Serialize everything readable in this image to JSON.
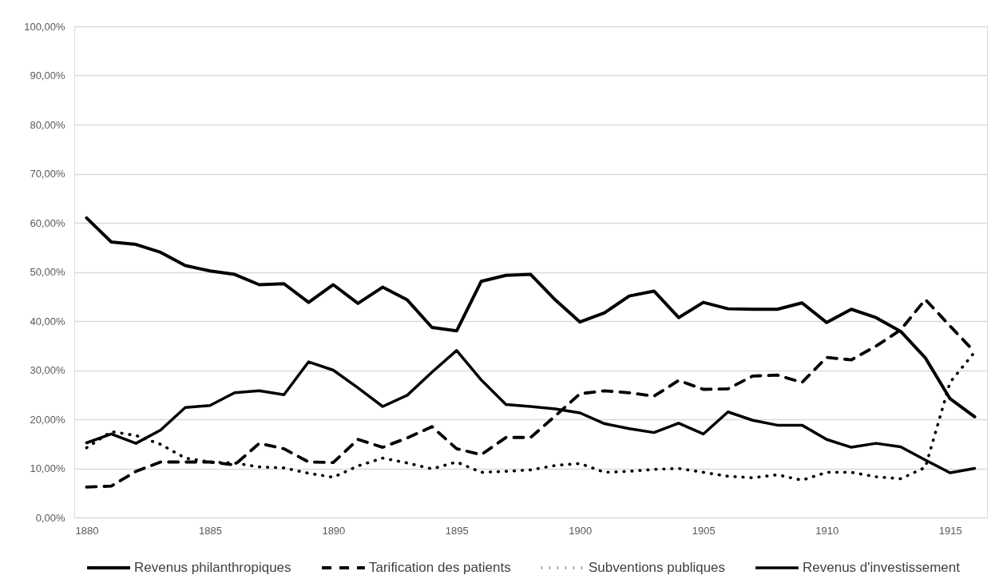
{
  "chart_data": {
    "type": "line",
    "x": [
      1880,
      1881,
      1882,
      1883,
      1884,
      1885,
      1886,
      1887,
      1888,
      1889,
      1890,
      1891,
      1892,
      1893,
      1894,
      1895,
      1896,
      1897,
      1898,
      1899,
      1900,
      1901,
      1902,
      1903,
      1904,
      1905,
      1906,
      1907,
      1908,
      1909,
      1910,
      1911,
      1912,
      1913,
      1914,
      1915,
      1916
    ],
    "series": [
      {
        "name": "Revenus philanthropiques",
        "color": "#000000",
        "line_style": "solid",
        "values": [
          61.0,
          56.1,
          55.6,
          54.0,
          51.3,
          50.2,
          49.5,
          47.4,
          47.6,
          43.8,
          47.4,
          43.6,
          46.9,
          44.3,
          38.7,
          38.0,
          48.1,
          49.3,
          49.5,
          44.3,
          39.8,
          41.7,
          45.1,
          46.1,
          40.7,
          43.8,
          42.5,
          42.4,
          42.4,
          43.7,
          39.7,
          42.4,
          40.7,
          37.9,
          32.5,
          24.2,
          20.5
        ]
      },
      {
        "name": "Tarification des patients",
        "color": "#000000",
        "line_style": "dashed",
        "values": [
          6.2,
          6.4,
          9.4,
          11.3,
          11.3,
          11.3,
          10.7,
          15.1,
          14.0,
          11.3,
          11.2,
          15.9,
          14.3,
          16.2,
          18.5,
          14.0,
          12.8,
          16.3,
          16.3,
          20.7,
          25.2,
          25.8,
          25.4,
          24.7,
          27.9,
          26.1,
          26.2,
          28.8,
          29.0,
          27.5,
          32.6,
          32.1,
          34.9,
          38.2,
          44.4,
          39.0,
          33.7
        ]
      },
      {
        "name": "Subventions publiques",
        "color": "#000000",
        "line_style": "dotted",
        "values": [
          14.2,
          17.5,
          16.7,
          14.9,
          12.1,
          11.3,
          11.1,
          10.3,
          10.1,
          9.0,
          8.2,
          10.5,
          12.1,
          11.1,
          9.9,
          11.3,
          9.2,
          9.4,
          9.7,
          10.6,
          11.0,
          9.2,
          9.4,
          9.8,
          10.0,
          9.2,
          8.4,
          8.1,
          8.7,
          7.6,
          9.2,
          9.2,
          8.3,
          7.9,
          10.2,
          27.5,
          33.7
        ]
      },
      {
        "name": "Revenus d'investissement",
        "color": "#000000",
        "line_style": "solid",
        "values": [
          15.2,
          17.0,
          15.1,
          17.8,
          22.4,
          22.8,
          25.4,
          25.8,
          25.0,
          31.7,
          30.0,
          26.4,
          22.6,
          24.9,
          29.6,
          34.0,
          28.0,
          23.0,
          22.6,
          22.1,
          21.3,
          19.1,
          18.1,
          17.3,
          19.2,
          17.0,
          21.5,
          19.8,
          18.8,
          18.8,
          15.9,
          14.3,
          15.1,
          14.4,
          11.7,
          9.1,
          10.0
        ]
      }
    ],
    "xlim": [
      1879.5,
      1916.5
    ],
    "xticks": [
      1880,
      1885,
      1890,
      1895,
      1900,
      1905,
      1910,
      1915
    ],
    "ylim": [
      0,
      100
    ],
    "yticks": [
      {
        "value": 0,
        "label": "0,00%"
      },
      {
        "value": 10,
        "label": "10,00%"
      },
      {
        "value": 20,
        "label": "20,00%"
      },
      {
        "value": 30,
        "label": "30,00%"
      },
      {
        "value": 40,
        "label": "40,00%"
      },
      {
        "value": 50,
        "label": "50,00%"
      },
      {
        "value": 60,
        "label": "60,00%"
      },
      {
        "value": 70,
        "label": "70,00%"
      },
      {
        "value": 80,
        "label": "80,00%"
      },
      {
        "value": 90,
        "label": "90,00%"
      },
      {
        "value": 100,
        "label": "100,00%"
      }
    ],
    "grid": "y",
    "legend": "bottom",
    "marker": "none"
  }
}
